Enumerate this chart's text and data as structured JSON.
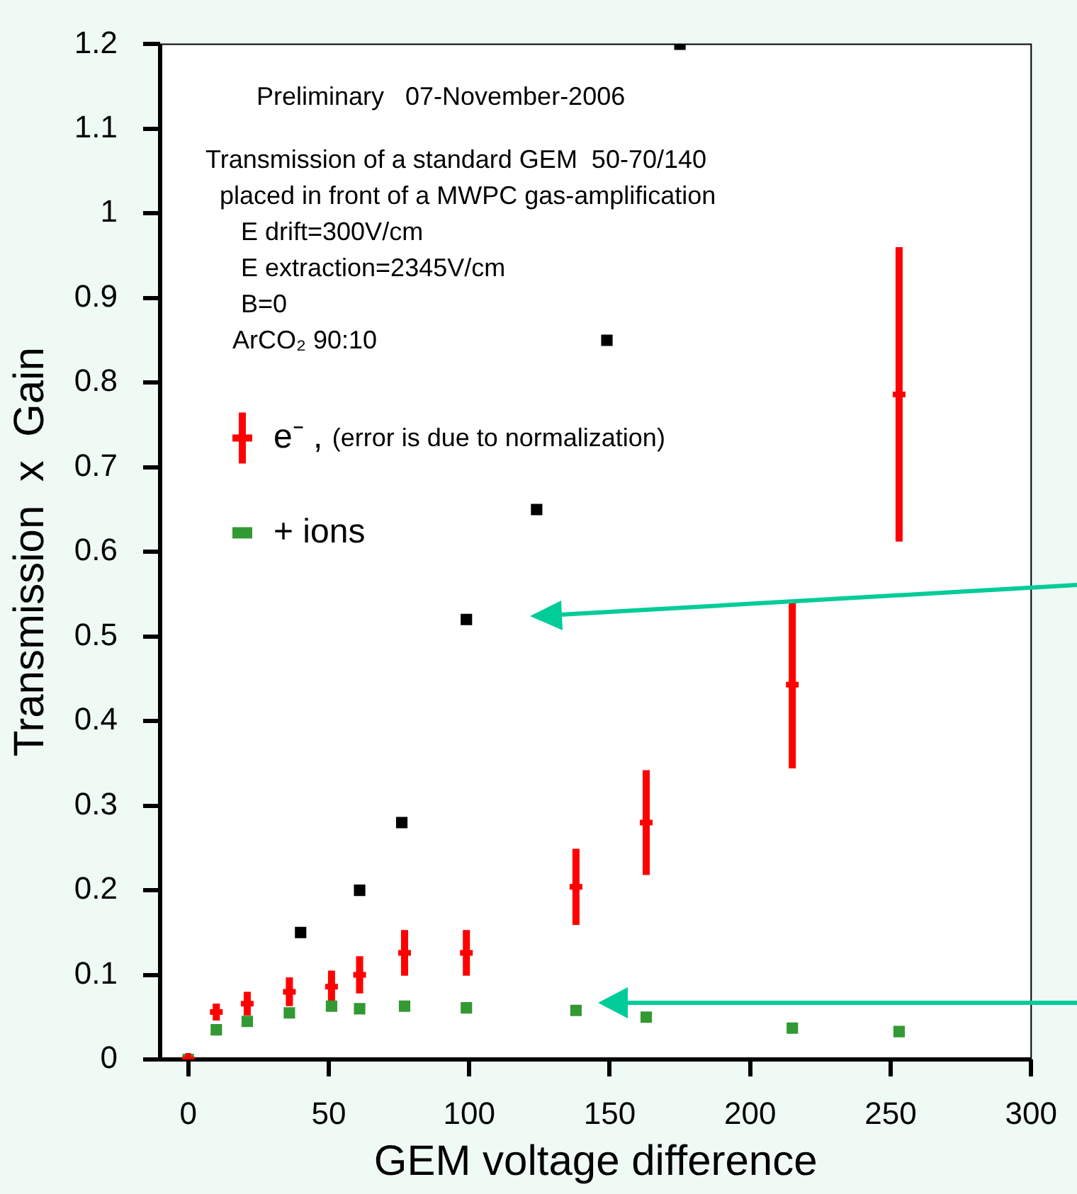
{
  "chart_data": {
    "type": "scatter",
    "xlabel": "GEM voltage difference",
    "ylabel": "Transmission  x  Gain",
    "xlim": [
      -10,
      300
    ],
    "ylim": [
      0,
      1.2
    ],
    "xticks": [
      0,
      50,
      100,
      150,
      200,
      250,
      300
    ],
    "yticks": [
      0,
      0.1,
      0.2,
      0.3,
      0.4,
      0.5,
      0.6,
      0.7,
      0.8,
      0.9,
      1.0,
      1.1,
      1.2
    ],
    "grid": false,
    "legend": "left",
    "annotations": [
      "Preliminary   07-November-2006",
      "Transmission of a standard GEM  50-70/140",
      "  placed in front of a MWPC gas-amplification",
      "     E drift=300V/cm",
      "     E extraction=2345V/cm",
      "     B=0",
      "    ArCO₂ 90:10"
    ],
    "series": [
      {
        "name": "e⁻ , (error is due to normalization)",
        "color": "#ff0000",
        "marker": "cross",
        "x": [
          0,
          10,
          21,
          36,
          51,
          61,
          77,
          99,
          138,
          163,
          215,
          253
        ],
        "values": [
          0,
          0.056,
          0.066,
          0.08,
          0.086,
          0.1,
          0.126,
          0.126,
          0.204,
          0.28,
          0.443,
          0.786
        ],
        "errors": [
          null,
          0.01,
          0.014,
          0.017,
          0.019,
          0.022,
          0.027,
          0.027,
          0.045,
          0.062,
          0.099,
          0.174
        ]
      },
      {
        "name": "+ ions",
        "color": "#339933",
        "marker": "square",
        "x": [
          0,
          10,
          21,
          36,
          51,
          61,
          77,
          99,
          138,
          163,
          215,
          253
        ],
        "values": [
          0,
          0.035,
          0.045,
          0.055,
          0.063,
          0.06,
          0.063,
          0.061,
          0.058,
          0.05,
          0.037,
          0.033
        ]
      },
      {
        "color": "#000000",
        "marker": "square",
        "x": [
          40,
          61,
          76,
          99,
          124,
          149,
          175
        ],
        "values": [
          0.15,
          0.2,
          0.28,
          0.52,
          0.65,
          0.85,
          1.2
        ]
      }
    ]
  }
}
